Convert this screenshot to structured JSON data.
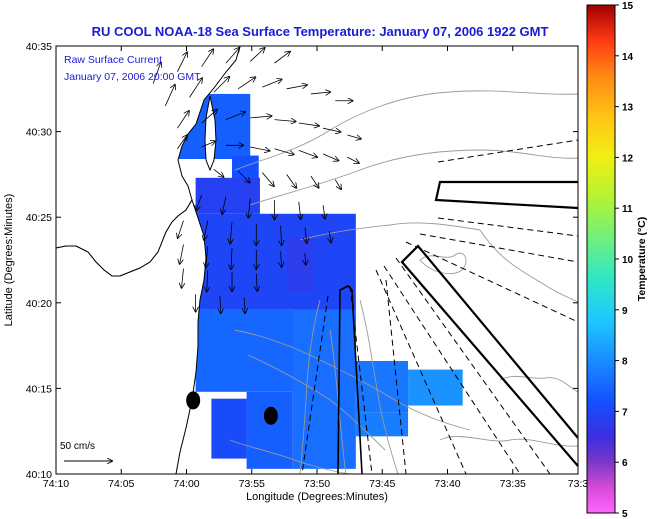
{
  "chart_data": {
    "type": "heatmap",
    "title": "RU COOL  NOAA-18  Sea Surface Temperature:  January 07, 2006 1922 GMT",
    "overlay_label_1": "Raw Surface Current",
    "overlay_label_2": "January 07, 2006 20:00 GMT",
    "xlabel": "Longitude (Degrees:Minutes)",
    "ylabel": "Latitude (Degrees:Minutes)",
    "x_ticks": [
      "74:10",
      "74:05",
      "74:00",
      "73:55",
      "73:50",
      "73:45",
      "73:40",
      "73:35",
      "73:3"
    ],
    "y_ticks": [
      "40:35",
      "40:30",
      "40:25",
      "40:20",
      "40:15",
      "40:10"
    ],
    "xlim_minutes": [
      -70,
      -27
    ],
    "ylim_minutes": [
      10,
      35
    ],
    "scale_label": "50 cm/s",
    "colorbar": {
      "label": "Temperature (°C)",
      "range": [
        5,
        15
      ],
      "ticks": [
        "5",
        "6",
        "7",
        "8",
        "9",
        "10",
        "11",
        "12",
        "13",
        "14",
        "15"
      ]
    },
    "sst_regions": [
      {
        "lon": [
          -65.7,
          -63.0
        ],
        "lat": [
          31.8,
          33.0
        ],
        "temp": 6.8
      },
      {
        "lon": [
          -63.0,
          -54.0
        ],
        "lat": [
          28.4,
          32.2
        ],
        "temp": 7.4
      },
      {
        "lon": [
          -55.5,
          -53.3
        ],
        "lat": [
          26.6,
          28.6
        ],
        "temp": 7.2
      },
      {
        "lon": [
          -58.5,
          -53.2
        ],
        "lat": [
          25.2,
          27.3
        ],
        "temp": 6.9
      },
      {
        "lon": [
          -58.5,
          -45.3
        ],
        "lat": [
          19.6,
          25.2
        ],
        "temp": 7.0
      },
      {
        "lon": [
          -51.0,
          -48.8
        ],
        "lat": [
          20.7,
          23.8
        ],
        "temp": 6.8
      },
      {
        "lon": [
          -58.5,
          -45.3
        ],
        "lat": [
          14.8,
          19.6
        ],
        "temp": 7.5
      },
      {
        "lon": [
          -50.5,
          -45.3
        ],
        "lat": [
          10.3,
          19.6
        ],
        "temp": 7.6
      },
      {
        "lon": [
          -54.3,
          -50.5
        ],
        "lat": [
          10.3,
          14.8
        ],
        "temp": 7.4
      },
      {
        "lon": [
          -57.2,
          -54.3
        ],
        "lat": [
          10.9,
          14.4
        ],
        "temp": 7.1
      },
      {
        "lon": [
          -45.3,
          -41.0
        ],
        "lat": [
          13.6,
          16.6
        ],
        "temp": 7.7
      },
      {
        "lon": [
          -41.0,
          -36.5
        ],
        "lat": [
          14.0,
          16.1
        ],
        "temp": 8.1
      },
      {
        "lon": [
          -45.3,
          -41.0
        ],
        "lat": [
          12.2,
          13.6
        ],
        "temp": 7.8
      }
    ],
    "current_vectors": [
      {
        "lon": -62.0,
        "lat": 32.8,
        "u": 8,
        "v": 22
      },
      {
        "lon": -60.0,
        "lat": 33.5,
        "u": 10,
        "v": 20
      },
      {
        "lon": -58.0,
        "lat": 33.8,
        "u": 12,
        "v": 18
      },
      {
        "lon": -56.0,
        "lat": 34.0,
        "u": 14,
        "v": 16
      },
      {
        "lon": -54.0,
        "lat": 34.1,
        "u": 15,
        "v": 14
      },
      {
        "lon": -52.0,
        "lat": 34.0,
        "u": 16,
        "v": 12
      },
      {
        "lon": -61.0,
        "lat": 31.5,
        "u": 10,
        "v": 22
      },
      {
        "lon": -59.0,
        "lat": 32.0,
        "u": 13,
        "v": 20
      },
      {
        "lon": -57.0,
        "lat": 32.3,
        "u": 16,
        "v": 16
      },
      {
        "lon": -55.0,
        "lat": 32.5,
        "u": 18,
        "v": 12
      },
      {
        "lon": -53.0,
        "lat": 32.6,
        "u": 20,
        "v": 8
      },
      {
        "lon": -51.0,
        "lat": 32.5,
        "u": 21,
        "v": 4
      },
      {
        "lon": -49.0,
        "lat": 32.2,
        "u": 20,
        "v": 2
      },
      {
        "lon": -47.0,
        "lat": 31.8,
        "u": 18,
        "v": 0
      },
      {
        "lon": -60.0,
        "lat": 30.2,
        "u": 12,
        "v": 18
      },
      {
        "lon": -58.0,
        "lat": 30.5,
        "u": 16,
        "v": 14
      },
      {
        "lon": -56.0,
        "lat": 30.7,
        "u": 20,
        "v": 8
      },
      {
        "lon": -54.0,
        "lat": 30.8,
        "u": 22,
        "v": 2
      },
      {
        "lon": -52.0,
        "lat": 30.7,
        "u": 22,
        "v": -2
      },
      {
        "lon": -50.0,
        "lat": 30.5,
        "u": 21,
        "v": -3
      },
      {
        "lon": -48.0,
        "lat": 30.2,
        "u": 18,
        "v": -4
      },
      {
        "lon": -46.0,
        "lat": 29.8,
        "u": 14,
        "v": -4
      },
      {
        "lon": -60.0,
        "lat": 29.0,
        "u": 10,
        "v": 14
      },
      {
        "lon": -58.0,
        "lat": 29.1,
        "u": 14,
        "v": 6
      },
      {
        "lon": -56.0,
        "lat": 29.2,
        "u": 18,
        "v": 0
      },
      {
        "lon": -54.0,
        "lat": 29.1,
        "u": 20,
        "v": -4
      },
      {
        "lon": -52.0,
        "lat": 29.0,
        "u": 20,
        "v": -6
      },
      {
        "lon": -50.0,
        "lat": 28.9,
        "u": 19,
        "v": -7
      },
      {
        "lon": -48.0,
        "lat": 28.7,
        "u": 16,
        "v": -7
      },
      {
        "lon": -46.0,
        "lat": 28.5,
        "u": 12,
        "v": -6
      },
      {
        "lon": -57.0,
        "lat": 27.8,
        "u": 10,
        "v": -8
      },
      {
        "lon": -55.0,
        "lat": 27.7,
        "u": 12,
        "v": -12
      },
      {
        "lon": -53.0,
        "lat": 27.6,
        "u": 12,
        "v": -14
      },
      {
        "lon": -51.0,
        "lat": 27.5,
        "u": 10,
        "v": -14
      },
      {
        "lon": -49.0,
        "lat": 27.4,
        "u": 8,
        "v": -12
      },
      {
        "lon": -47.0,
        "lat": 27.2,
        "u": 6,
        "v": -10
      },
      {
        "lon": -58.0,
        "lat": 26.3,
        "u": -6,
        "v": -16
      },
      {
        "lon": -56.0,
        "lat": 26.2,
        "u": -4,
        "v": -18
      },
      {
        "lon": -54.0,
        "lat": 26.1,
        "u": -2,
        "v": -20
      },
      {
        "lon": -52.0,
        "lat": 26.0,
        "u": 0,
        "v": -20
      },
      {
        "lon": -50.0,
        "lat": 25.9,
        "u": 2,
        "v": -18
      },
      {
        "lon": -48.0,
        "lat": 25.7,
        "u": 2,
        "v": -14
      },
      {
        "lon": -59.5,
        "lat": 24.8,
        "u": -6,
        "v": -18
      },
      {
        "lon": -57.5,
        "lat": 24.8,
        "u": -4,
        "v": -20
      },
      {
        "lon": -55.5,
        "lat": 24.7,
        "u": -2,
        "v": -22
      },
      {
        "lon": -53.5,
        "lat": 24.6,
        "u": 0,
        "v": -22
      },
      {
        "lon": -51.5,
        "lat": 24.5,
        "u": 1,
        "v": -20
      },
      {
        "lon": -49.5,
        "lat": 24.4,
        "u": 2,
        "v": -16
      },
      {
        "lon": -47.5,
        "lat": 24.2,
        "u": 2,
        "v": -12
      },
      {
        "lon": -59.5,
        "lat": 23.4,
        "u": -4,
        "v": -20
      },
      {
        "lon": -57.5,
        "lat": 23.3,
        "u": -2,
        "v": -22
      },
      {
        "lon": -55.5,
        "lat": 23.2,
        "u": -1,
        "v": -22
      },
      {
        "lon": -53.5,
        "lat": 23.1,
        "u": 0,
        "v": -20
      },
      {
        "lon": -51.5,
        "lat": 23.0,
        "u": 1,
        "v": -16
      },
      {
        "lon": -49.5,
        "lat": 22.9,
        "u": 1,
        "v": -12
      },
      {
        "lon": -59.5,
        "lat": 22.0,
        "u": -2,
        "v": -20
      },
      {
        "lon": -57.5,
        "lat": 21.9,
        "u": -1,
        "v": -22
      },
      {
        "lon": -55.5,
        "lat": 21.8,
        "u": 0,
        "v": -20
      },
      {
        "lon": -53.5,
        "lat": 21.7,
        "u": 1,
        "v": -18
      },
      {
        "lon": -58.5,
        "lat": 20.5,
        "u": 0,
        "v": -18
      },
      {
        "lon": -56.5,
        "lat": 20.4,
        "u": 1,
        "v": -18
      },
      {
        "lon": -54.5,
        "lat": 20.3,
        "u": 1,
        "v": -16
      }
    ],
    "points": [
      {
        "name": "dot-1",
        "lon": -58.7,
        "lat": 14.3
      },
      {
        "name": "dot-2",
        "lon": -52.3,
        "lat": 13.4
      }
    ]
  }
}
